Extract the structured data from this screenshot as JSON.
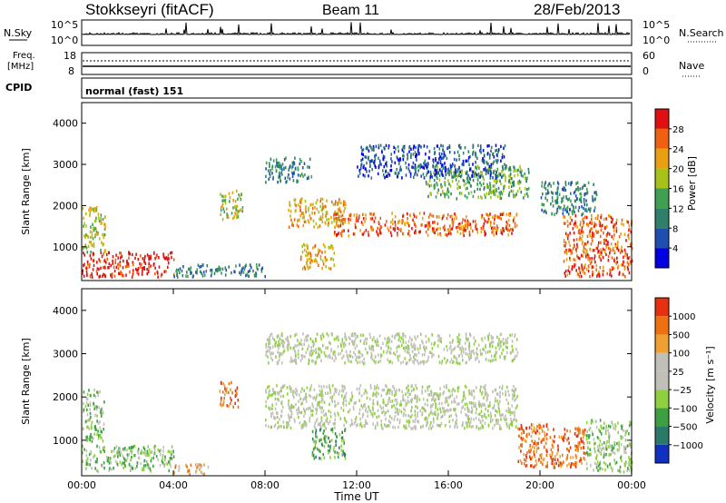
{
  "header": {
    "station": "Stokkseyri (fitACF)",
    "beam": "Beam 11",
    "date": "28/Feb/2013"
  },
  "noise_panel": {
    "left_label": "N.Sky",
    "right_label": "N.Search",
    "left_ticks": [
      "10^5",
      "10^0"
    ],
    "right_ticks": [
      "10^5",
      "10^0"
    ]
  },
  "freq_panel": {
    "left_label_1": "Freq.",
    "left_label_2": "[MHz]",
    "left_ticks": [
      "18",
      "8"
    ],
    "right_label": "Nave",
    "right_ticks": [
      "60",
      "0"
    ]
  },
  "cpid_panel": {
    "label": "CPID",
    "program": "normal (fast) 151"
  },
  "chart_data": [
    {
      "type": "heatmap",
      "name": "Power",
      "ylabel": "Slant Range [km]",
      "ylim": [
        180,
        4500
      ],
      "yticks": [
        1000,
        2000,
        3000,
        4000
      ],
      "xlim": [
        0,
        24
      ],
      "colorbar_label": "Power [dB]",
      "colorbar_ticks": [
        "28",
        "24",
        "20",
        "16",
        "12",
        "8",
        "4"
      ],
      "colors": [
        "#0000e0",
        "#1e4fb0",
        "#2f7f6a",
        "#3ea050",
        "#a8c21a",
        "#e8a010",
        "#f06010",
        "#e01010"
      ],
      "regions": [
        {
          "t0": 11.0,
          "t1": 19.0,
          "r0": 1300,
          "r1": 1850,
          "level": 6
        },
        {
          "t0": 9.0,
          "t1": 11.5,
          "r0": 1500,
          "r1": 2200,
          "level": 5
        },
        {
          "t0": 15.0,
          "t1": 19.5,
          "r0": 2200,
          "r1": 3000,
          "level": 3
        },
        {
          "t0": 12.0,
          "t1": 18.5,
          "r0": 2700,
          "r1": 3500,
          "level": 1
        },
        {
          "t0": 0.0,
          "t1": 4.0,
          "r0": 300,
          "r1": 900,
          "level": 7
        },
        {
          "t0": 0.0,
          "t1": 1.0,
          "r0": 900,
          "r1": 2000,
          "level": 4
        },
        {
          "t0": 21.0,
          "t1": 24.0,
          "r0": 300,
          "r1": 1800,
          "level": 6
        },
        {
          "t0": 6.0,
          "t1": 7.0,
          "r0": 1700,
          "r1": 2400,
          "level": 4
        },
        {
          "t0": 8.0,
          "t1": 10.0,
          "r0": 2600,
          "r1": 3200,
          "level": 2
        },
        {
          "t0": 20.0,
          "t1": 22.5,
          "r0": 1800,
          "r1": 2600,
          "level": 2
        },
        {
          "t0": 9.5,
          "t1": 11.0,
          "r0": 500,
          "r1": 1100,
          "level": 5
        },
        {
          "t0": 4.0,
          "t1": 8.0,
          "r0": 300,
          "r1": 600,
          "level": 2
        }
      ]
    },
    {
      "type": "heatmap",
      "name": "Velocity",
      "ylabel": "Slant Range [km]",
      "ylim": [
        180,
        4500
      ],
      "yticks": [
        1000,
        2000,
        3000,
        4000
      ],
      "xlim": [
        0,
        24
      ],
      "xticks": [
        "00:00",
        "04:00",
        "08:00",
        "12:00",
        "16:00",
        "20:00",
        "00:00"
      ],
      "xlabel": "Time UT",
      "colorbar_label": "Velocity [m s⁻¹]",
      "colorbar_ticks": [
        "1000",
        "500",
        "100",
        "25",
        "−25",
        "−100",
        "−500",
        "−1000"
      ],
      "colors": [
        "#1030c0",
        "#2a7a6a",
        "#3ca040",
        "#8ed040",
        "#c0c0b8",
        "#c0c0b8",
        "#f0a030",
        "#f07010",
        "#e83010"
      ],
      "regions": [
        {
          "t0": 8.0,
          "t1": 19.0,
          "r0": 1300,
          "r1": 2300,
          "level": 4
        },
        {
          "t0": 8.0,
          "t1": 19.0,
          "r0": 2800,
          "r1": 3500,
          "level": 4
        },
        {
          "t0": 0.0,
          "t1": 4.0,
          "r0": 300,
          "r1": 900,
          "level": 3
        },
        {
          "t0": 0.0,
          "t1": 1.0,
          "r0": 1000,
          "r1": 2200,
          "level": 3
        },
        {
          "t0": 10.0,
          "t1": 11.5,
          "r0": 600,
          "r1": 1300,
          "level": 2
        },
        {
          "t0": 19.0,
          "t1": 22.0,
          "r0": 400,
          "r1": 1400,
          "level": 7
        },
        {
          "t0": 6.0,
          "t1": 6.8,
          "r0": 1800,
          "r1": 2400,
          "level": 7
        },
        {
          "t0": 4.0,
          "t1": 5.5,
          "r0": 250,
          "r1": 500,
          "level": 6
        },
        {
          "t0": 22.0,
          "t1": 24.0,
          "r0": 300,
          "r1": 1500,
          "level": 3
        }
      ]
    }
  ]
}
